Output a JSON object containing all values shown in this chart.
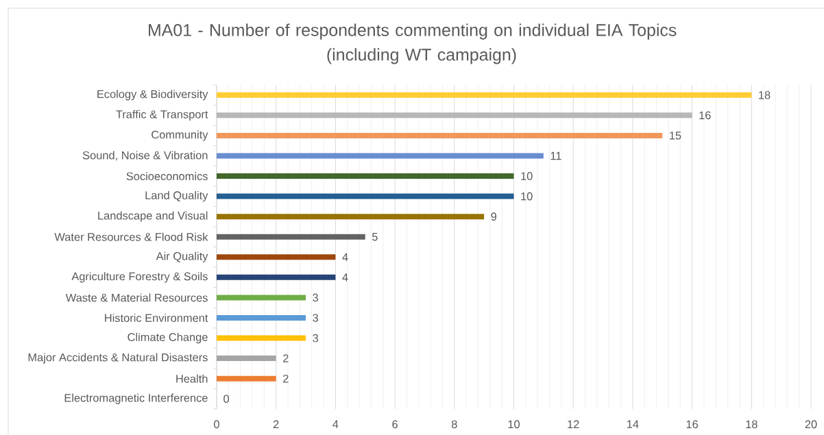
{
  "chart_data": {
    "type": "bar",
    "orientation": "horizontal",
    "title": "MA01 - Number of respondents commenting on individual EIA Topics (including WT campaign)",
    "categories": [
      "Ecology & Biodiversity",
      "Traffic & Transport",
      "Community",
      "Sound, Noise & Vibration",
      "Socioeconomics",
      "Land Quality",
      "Landscape and Visual",
      "Water Resources & Flood Risk",
      "Air Quality",
      "Agriculture Forestry & Soils",
      "Waste & Material Resources",
      "Historic Environment",
      "Climate Change",
      "Major Accidents & Natural Disasters",
      "Health",
      "Electromagnetic Interference"
    ],
    "values": [
      18,
      16,
      15,
      11,
      10,
      10,
      9,
      5,
      4,
      4,
      3,
      3,
      3,
      2,
      2,
      0
    ],
    "colors": [
      "#ffcd33",
      "#b7b7b7",
      "#f1975a",
      "#698ed0",
      "#43682b",
      "#255e91",
      "#997300",
      "#636363",
      "#9e480e",
      "#264478",
      "#70ad47",
      "#5b9bd5",
      "#ffc000",
      "#a5a5a5",
      "#ed7d31",
      "#4472c4"
    ],
    "xlim": [
      0,
      20
    ],
    "xticks": [
      0,
      2,
      4,
      6,
      8,
      10,
      12,
      14,
      16,
      18,
      20
    ],
    "grid": "x",
    "data_labels": true
  }
}
